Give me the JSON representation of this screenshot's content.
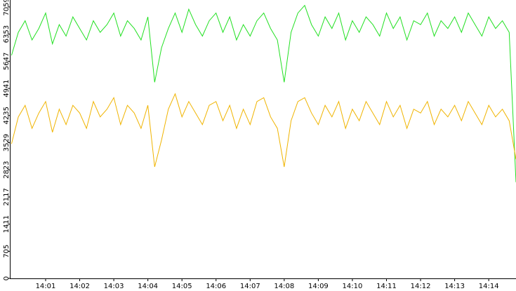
{
  "chart_data": {
    "type": "line",
    "x": [
      0,
      0.2,
      0.4,
      0.6,
      0.8,
      1,
      1.2,
      1.4,
      1.6,
      1.8,
      2,
      2.2,
      2.4,
      2.6,
      2.8,
      3,
      3.2,
      3.4,
      3.6,
      3.8,
      4,
      4.2,
      4.4,
      4.6,
      4.8,
      5,
      5.2,
      5.4,
      5.6,
      5.8,
      6,
      6.2,
      6.4,
      6.6,
      6.8,
      7,
      7.2,
      7.4,
      7.6,
      7.8,
      8,
      8.2,
      8.4,
      8.6,
      8.8,
      9,
      9.2,
      9.4,
      9.6,
      9.8,
      10,
      10.2,
      10.4,
      10.6,
      10.8,
      11,
      11.2,
      11.4,
      11.6,
      11.8,
      12,
      12.2,
      12.4,
      12.6,
      12.8,
      13,
      13.2,
      13.4,
      13.6,
      13.8,
      14,
      14.2,
      14.4,
      14.6,
      14.8
    ],
    "series": [
      {
        "color": "#22e022",
        "values": [
          5800,
          6400,
          6700,
          6200,
          6500,
          6900,
          6100,
          6600,
          6300,
          6800,
          6500,
          6200,
          6700,
          6400,
          6600,
          6900,
          6300,
          6700,
          6500,
          6200,
          6800,
          5100,
          6000,
          6500,
          6900,
          6400,
          7000,
          6600,
          6300,
          6700,
          6900,
          6400,
          6800,
          6200,
          6600,
          6300,
          6700,
          6900,
          6500,
          6200,
          5100,
          6400,
          6900,
          7100,
          6600,
          6300,
          6800,
          6500,
          6900,
          6200,
          6700,
          6400,
          6800,
          6600,
          6300,
          6900,
          6500,
          6800,
          6200,
          6700,
          6600,
          6900,
          6300,
          6700,
          6500,
          6800,
          6400,
          6900,
          6600,
          6300,
          6800,
          6500,
          6700,
          6400,
          2500
        ]
      },
      {
        "color": "#f0b400",
        "values": [
          3500,
          4200,
          4500,
          3900,
          4300,
          4600,
          3800,
          4400,
          4000,
          4500,
          4300,
          3900,
          4600,
          4200,
          4400,
          4700,
          4000,
          4500,
          4300,
          3900,
          4500,
          2900,
          3600,
          4400,
          4800,
          4200,
          4600,
          4300,
          4000,
          4500,
          4600,
          4100,
          4500,
          3900,
          4400,
          4000,
          4600,
          4700,
          4200,
          3900,
          2900,
          4100,
          4600,
          4700,
          4300,
          4000,
          4500,
          4200,
          4600,
          3900,
          4400,
          4100,
          4600,
          4300,
          4000,
          4600,
          4200,
          4500,
          3900,
          4400,
          4300,
          4600,
          4000,
          4400,
          4200,
          4500,
          4100,
          4600,
          4300,
          4000,
          4500,
          4200,
          4400,
          4100,
          3100
        ]
      }
    ],
    "xlim": [
      -0.05,
      14.8
    ],
    "xticks": [
      {
        "value": 1,
        "label": "14:01"
      },
      {
        "value": 2,
        "label": "14:02"
      },
      {
        "value": 3,
        "label": "14:03"
      },
      {
        "value": 4,
        "label": "14:04"
      },
      {
        "value": 5,
        "label": "14:05"
      },
      {
        "value": 6,
        "label": "14:06"
      },
      {
        "value": 7,
        "label": "14:07"
      },
      {
        "value": 8,
        "label": "14:08"
      },
      {
        "value": 9,
        "label": "14:09"
      },
      {
        "value": 10,
        "label": "14:10"
      },
      {
        "value": 11,
        "label": "14:11"
      },
      {
        "value": 12,
        "label": "14:12"
      },
      {
        "value": 13,
        "label": "14:13"
      },
      {
        "value": 14,
        "label": "14:14"
      }
    ],
    "ylim": [
      0,
      7240
    ],
    "yticks": [
      0,
      705,
      1411,
      2117,
      2823,
      3529,
      4235,
      4941,
      5647,
      6353,
      7059
    ]
  }
}
